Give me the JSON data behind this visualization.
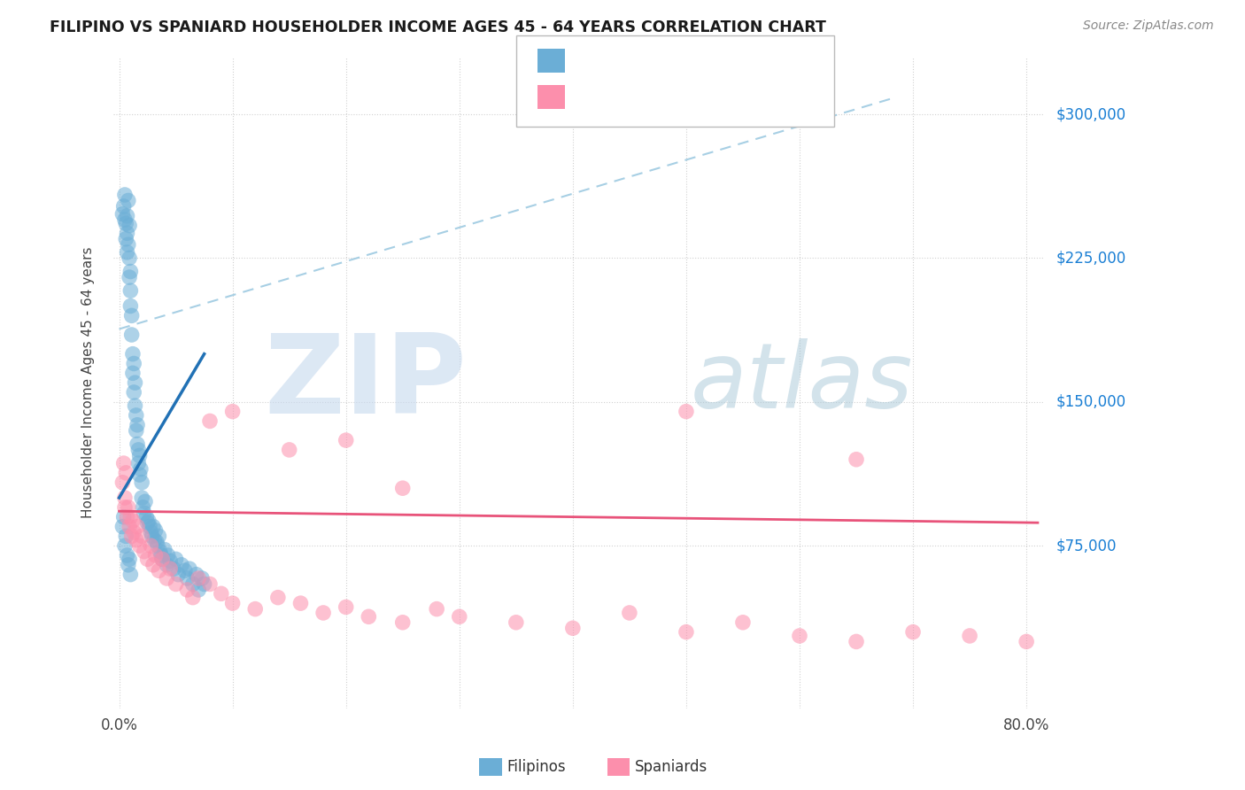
{
  "title": "FILIPINO VS SPANIARD HOUSEHOLDER INCOME AGES 45 - 64 YEARS CORRELATION CHART",
  "source": "Source: ZipAtlas.com",
  "ylabel": "Householder Income Ages 45 - 64 years",
  "ytick_labels": [
    "$75,000",
    "$150,000",
    "$225,000",
    "$300,000"
  ],
  "ytick_values": [
    75000,
    150000,
    225000,
    300000
  ],
  "ylim": [
    -10000,
    330000
  ],
  "xlim": [
    -0.005,
    0.815
  ],
  "filipino_color": "#6baed6",
  "spaniard_color": "#fc8fac",
  "filipino_line_color": "#2171b5",
  "spaniard_line_color": "#e8537a",
  "dashed_line_color": "#9ecae1",
  "legend_text_color": "#2171b5",
  "watermark_zip": "ZIP",
  "watermark_atlas": "atlas",
  "watermark_color_zip": "#b8cfe8",
  "watermark_color_atlas": "#a8c8d8",
  "filipino_x": [
    0.003,
    0.004,
    0.005,
    0.005,
    0.006,
    0.006,
    0.007,
    0.007,
    0.007,
    0.008,
    0.008,
    0.009,
    0.009,
    0.009,
    0.01,
    0.01,
    0.01,
    0.011,
    0.011,
    0.012,
    0.012,
    0.013,
    0.013,
    0.014,
    0.014,
    0.015,
    0.015,
    0.016,
    0.016,
    0.017,
    0.017,
    0.018,
    0.018,
    0.019,
    0.02,
    0.02,
    0.021,
    0.022,
    0.023,
    0.024,
    0.025,
    0.026,
    0.027,
    0.028,
    0.029,
    0.03,
    0.031,
    0.032,
    0.033,
    0.034,
    0.035,
    0.036,
    0.037,
    0.038,
    0.04,
    0.042,
    0.043,
    0.045,
    0.048,
    0.05,
    0.052,
    0.055,
    0.058,
    0.06,
    0.062,
    0.065,
    0.068,
    0.07,
    0.073,
    0.075,
    0.003,
    0.004,
    0.005,
    0.006,
    0.007,
    0.008,
    0.009,
    0.01
  ],
  "filipino_y": [
    248000,
    252000,
    245000,
    258000,
    235000,
    243000,
    247000,
    238000,
    228000,
    232000,
    255000,
    242000,
    225000,
    215000,
    208000,
    218000,
    200000,
    195000,
    185000,
    175000,
    165000,
    170000,
    155000,
    160000,
    148000,
    143000,
    135000,
    138000,
    128000,
    125000,
    118000,
    122000,
    112000,
    115000,
    108000,
    100000,
    95000,
    92000,
    98000,
    90000,
    87000,
    88000,
    85000,
    82000,
    80000,
    85000,
    78000,
    83000,
    77000,
    75000,
    80000,
    72000,
    70000,
    68000,
    73000,
    65000,
    70000,
    67000,
    63000,
    68000,
    60000,
    65000,
    62000,
    58000,
    63000,
    55000,
    60000,
    52000,
    58000,
    55000,
    85000,
    90000,
    75000,
    80000,
    70000,
    65000,
    68000,
    60000
  ],
  "spaniard_x": [
    0.003,
    0.004,
    0.005,
    0.005,
    0.006,
    0.007,
    0.008,
    0.009,
    0.01,
    0.011,
    0.012,
    0.013,
    0.015,
    0.016,
    0.018,
    0.02,
    0.022,
    0.025,
    0.028,
    0.03,
    0.032,
    0.035,
    0.038,
    0.042,
    0.045,
    0.05,
    0.06,
    0.065,
    0.07,
    0.08,
    0.09,
    0.1,
    0.12,
    0.14,
    0.16,
    0.18,
    0.2,
    0.22,
    0.25,
    0.28,
    0.3,
    0.35,
    0.4,
    0.45,
    0.5,
    0.55,
    0.6,
    0.65,
    0.7,
    0.75,
    0.8,
    0.08,
    0.1,
    0.15,
    0.2,
    0.5,
    0.65,
    0.25
  ],
  "spaniard_y": [
    108000,
    118000,
    100000,
    95000,
    113000,
    90000,
    95000,
    85000,
    90000,
    80000,
    88000,
    82000,
    78000,
    85000,
    75000,
    80000,
    72000,
    68000,
    75000,
    65000,
    70000,
    62000,
    68000,
    58000,
    63000,
    55000,
    52000,
    48000,
    58000,
    55000,
    50000,
    45000,
    42000,
    48000,
    45000,
    40000,
    43000,
    38000,
    35000,
    42000,
    38000,
    35000,
    32000,
    40000,
    30000,
    35000,
    28000,
    25000,
    30000,
    28000,
    25000,
    140000,
    145000,
    125000,
    130000,
    145000,
    120000,
    105000
  ]
}
